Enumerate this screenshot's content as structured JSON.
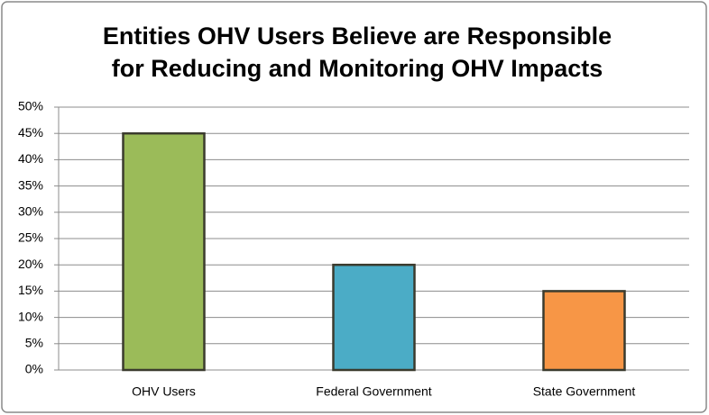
{
  "chart_data": {
    "type": "bar",
    "title": [
      "Entities OHV Users Believe are Responsible",
      "for Reducing and Monitoring OHV Impacts"
    ],
    "categories": [
      "OHV Users",
      "Federal Government",
      "State Government"
    ],
    "values": [
      45,
      20,
      15
    ],
    "colors": [
      "#9bbb59",
      "#4bacc6",
      "#f79646"
    ],
    "ylim": [
      0,
      50
    ],
    "yticks": [
      {
        "value": 0,
        "label": "0%"
      },
      {
        "value": 5,
        "label": "5%"
      },
      {
        "value": 10,
        "label": "10%"
      },
      {
        "value": 15,
        "label": "15%"
      },
      {
        "value": 20,
        "label": "20%"
      },
      {
        "value": 25,
        "label": "25%"
      },
      {
        "value": 30,
        "label": "30%"
      },
      {
        "value": 35,
        "label": "35%"
      },
      {
        "value": 40,
        "label": "40%"
      },
      {
        "value": 45,
        "label": "45%"
      },
      {
        "value": 50,
        "label": "50%"
      }
    ],
    "grid": true
  }
}
